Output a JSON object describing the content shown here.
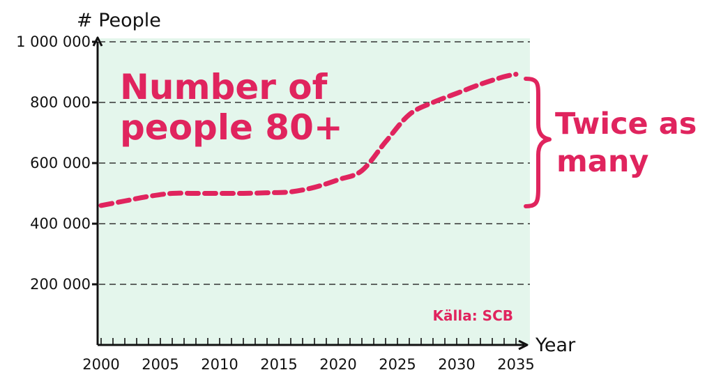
{
  "chart_data": {
    "type": "line",
    "title": "",
    "xlabel": "Year",
    "ylabel": "# People",
    "xlim": [
      2000,
      2035
    ],
    "ylim": [
      0,
      1000000
    ],
    "x_ticks": [
      2000,
      2005,
      2010,
      2015,
      2020,
      2025,
      2030,
      2035
    ],
    "y_ticks": [
      200000,
      400000,
      600000,
      800000,
      1000000
    ],
    "x_tick_labels": [
      "2000",
      "2005",
      "2010",
      "2015",
      "2020",
      "2025",
      "2030",
      "2035"
    ],
    "y_tick_labels": [
      "200 000",
      "400 000",
      "600 000",
      "800 000",
      "1 000 000"
    ],
    "grid": "horizontal dashed",
    "series": [
      {
        "name": "",
        "style": "dashed",
        "x": [
          2000,
          2002,
          2004,
          2006,
          2008,
          2010,
          2012,
          2014,
          2016,
          2018,
          2020,
          2022,
          2024,
          2026,
          2028,
          2030,
          2032,
          2034,
          2035
        ],
        "values": [
          460000,
          475000,
          490000,
          500000,
          500000,
          500000,
          500000,
          502000,
          505000,
          520000,
          545000,
          575000,
          670000,
          760000,
          800000,
          830000,
          860000,
          885000,
          893000
        ]
      }
    ],
    "annotations": {
      "headline_line1": "Number of",
      "headline_line2": "people 80+",
      "brace_line1": "Twice as",
      "brace_line2": "many",
      "source": "Källa: SCB"
    },
    "colors": {
      "accent": "#e0245e",
      "plot_bg": "#e4f6ec",
      "axis": "#111111",
      "grid": "#333333"
    }
  }
}
